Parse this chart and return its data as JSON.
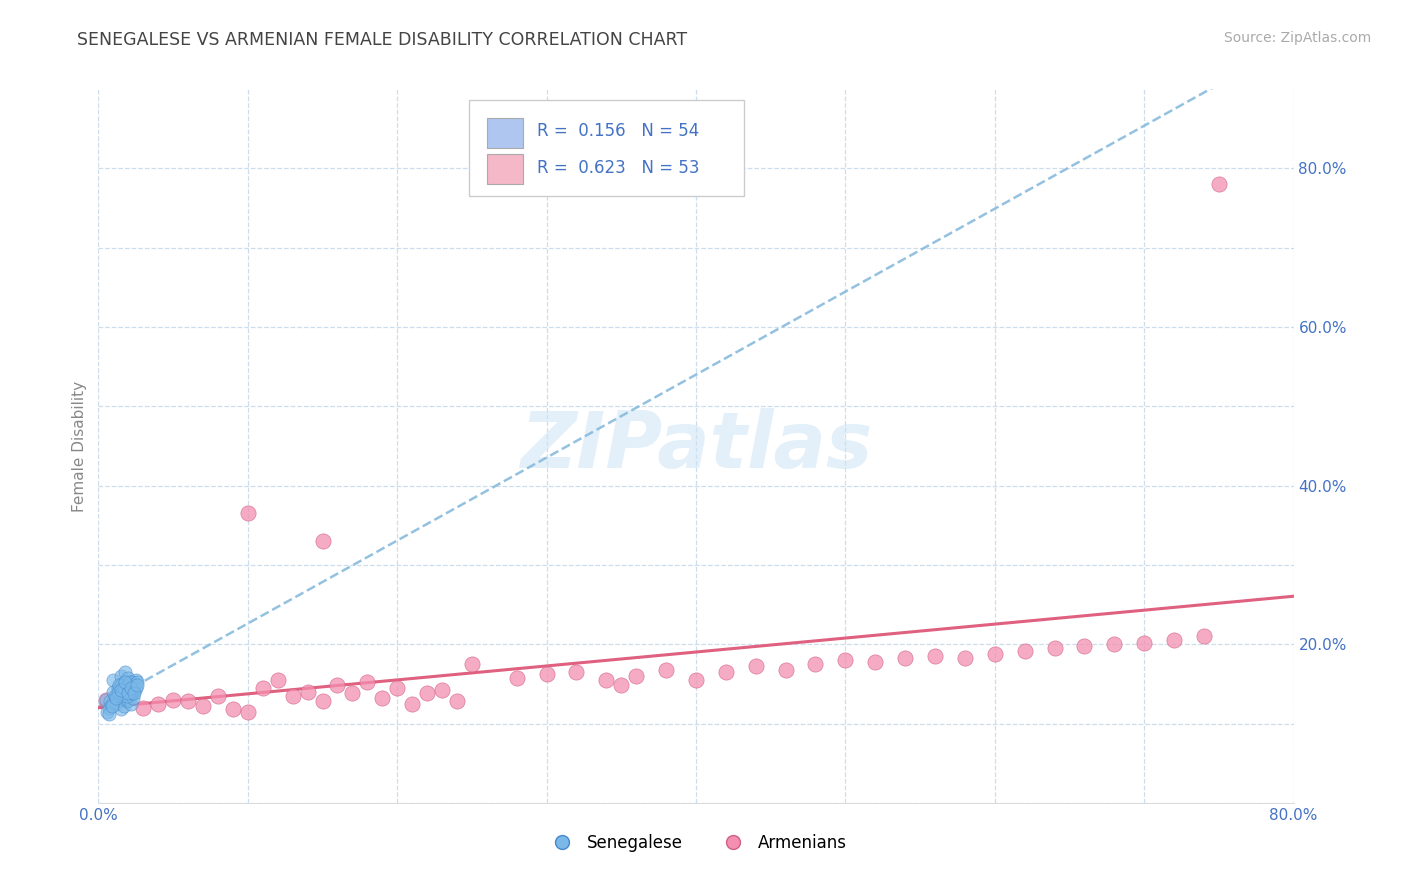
{
  "title": "SENEGALESE VS ARMENIAN FEMALE DISABILITY CORRELATION CHART",
  "source": "Source: ZipAtlas.com",
  "ylabel": "Female Disability",
  "xlim": [
    0.0,
    0.8
  ],
  "ylim": [
    0.0,
    0.9
  ],
  "tick_color": "#4472c4",
  "senegalese_color": "#7ab8e8",
  "senegalese_edge": "#4488cc",
  "armenian_color": "#f48fb1",
  "armenian_edge": "#d06080",
  "trend_blue_color": "#88bbdd",
  "trend_pink_color": "#e06080",
  "grid_color": "#ccddee",
  "background_color": "#ffffff",
  "R_senegalese": 0.156,
  "N_senegalese": 54,
  "R_armenian": 0.623,
  "N_armenian": 53,
  "legend_blue_fill": "#aec6f0",
  "legend_pink_fill": "#f4b8c8",
  "senegalese_x": [
    0.005,
    0.007,
    0.008,
    0.01,
    0.01,
    0.012,
    0.013,
    0.014,
    0.015,
    0.015,
    0.015,
    0.016,
    0.016,
    0.017,
    0.018,
    0.018,
    0.018,
    0.019,
    0.019,
    0.02,
    0.02,
    0.02,
    0.021,
    0.021,
    0.022,
    0.022,
    0.023,
    0.023,
    0.024,
    0.025,
    0.006,
    0.009,
    0.011,
    0.013,
    0.014,
    0.016,
    0.017,
    0.019,
    0.02,
    0.021,
    0.022,
    0.023,
    0.024,
    0.025,
    0.026,
    0.007,
    0.009,
    0.012,
    0.015,
    0.018,
    0.02,
    0.022,
    0.024,
    0.026
  ],
  "senegalese_y": [
    0.13,
    0.12,
    0.128,
    0.14,
    0.155,
    0.125,
    0.145,
    0.132,
    0.118,
    0.148,
    0.16,
    0.135,
    0.15,
    0.122,
    0.138,
    0.152,
    0.165,
    0.142,
    0.128,
    0.145,
    0.13,
    0.158,
    0.136,
    0.148,
    0.125,
    0.142,
    0.132,
    0.152,
    0.14,
    0.155,
    0.115,
    0.125,
    0.135,
    0.14,
    0.148,
    0.138,
    0.145,
    0.135,
    0.148,
    0.152,
    0.138,
    0.142,
    0.148,
    0.145,
    0.152,
    0.112,
    0.122,
    0.132,
    0.142,
    0.152,
    0.138,
    0.145,
    0.138,
    0.148
  ],
  "armenian_x": [
    0.005,
    0.02,
    0.03,
    0.04,
    0.05,
    0.06,
    0.07,
    0.08,
    0.09,
    0.1,
    0.11,
    0.12,
    0.13,
    0.14,
    0.15,
    0.16,
    0.17,
    0.18,
    0.19,
    0.2,
    0.21,
    0.22,
    0.23,
    0.24,
    0.25,
    0.28,
    0.3,
    0.32,
    0.34,
    0.35,
    0.36,
    0.38,
    0.4,
    0.42,
    0.44,
    0.46,
    0.48,
    0.5,
    0.52,
    0.54,
    0.56,
    0.58,
    0.6,
    0.62,
    0.64,
    0.66,
    0.68,
    0.7,
    0.72,
    0.74,
    0.1,
    0.15,
    0.75
  ],
  "armenian_y": [
    0.13,
    0.14,
    0.12,
    0.125,
    0.13,
    0.128,
    0.122,
    0.135,
    0.118,
    0.115,
    0.145,
    0.155,
    0.135,
    0.14,
    0.128,
    0.148,
    0.138,
    0.152,
    0.132,
    0.145,
    0.125,
    0.138,
    0.142,
    0.128,
    0.175,
    0.158,
    0.162,
    0.165,
    0.155,
    0.148,
    0.16,
    0.168,
    0.155,
    0.165,
    0.172,
    0.168,
    0.175,
    0.18,
    0.178,
    0.182,
    0.185,
    0.182,
    0.188,
    0.192,
    0.195,
    0.198,
    0.2,
    0.202,
    0.205,
    0.21,
    0.365,
    0.33,
    0.78
  ]
}
